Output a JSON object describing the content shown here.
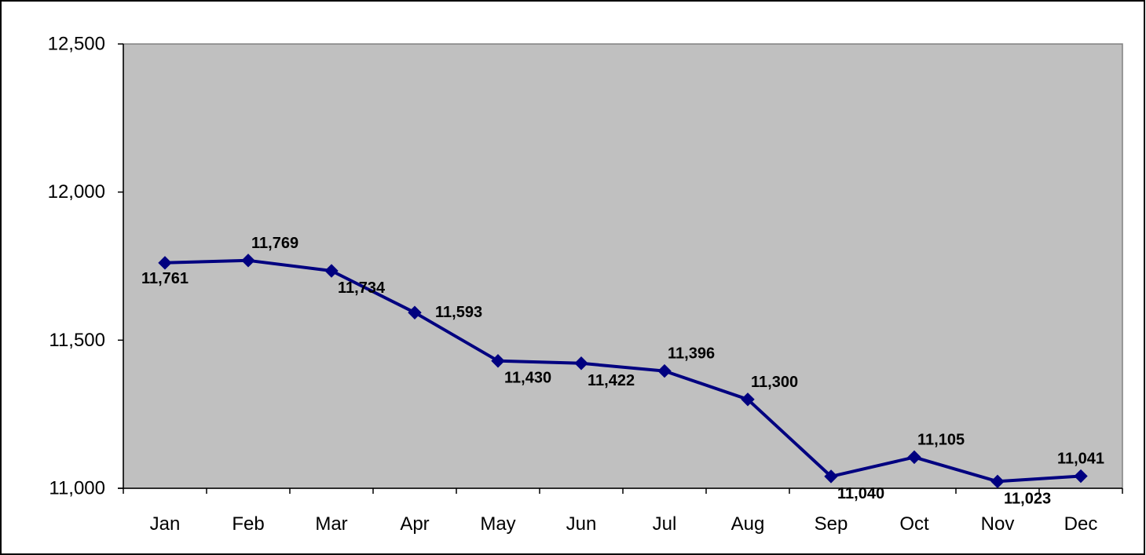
{
  "chart_data": {
    "type": "line",
    "title": "",
    "xlabel": "",
    "ylabel": "",
    "categories": [
      "Jan",
      "Feb",
      "Mar",
      "Apr",
      "May",
      "Jun",
      "Jul",
      "Aug",
      "Sep",
      "Oct",
      "Nov",
      "Dec"
    ],
    "series": [
      {
        "values": [
          11761,
          11769,
          11734,
          11593,
          11430,
          11422,
          11396,
          11300,
          11040,
          11105,
          11023,
          11041
        ],
        "labels": [
          "11,761",
          "11,769",
          "11,734",
          "11,593",
          "11,430",
          "11,422",
          "11,396",
          "11,300",
          "11,040",
          "11,105",
          "11,023",
          "11,041"
        ],
        "color": "#000080",
        "marker": "diamond"
      }
    ],
    "ylim": [
      11000,
      12500
    ],
    "yticks": [
      11000,
      11500,
      12000,
      12500
    ],
    "ytick_labels": [
      "11,000",
      "11,500",
      "12,000",
      "12,500"
    ],
    "grid": false,
    "legend": "none",
    "plot_background": "#c0c0c0",
    "label_placement": [
      "below",
      "above-right",
      "below-right",
      "right",
      "below-right",
      "below-right",
      "above-right",
      "above-right",
      "below-right",
      "above-right",
      "below-right",
      "above"
    ]
  }
}
